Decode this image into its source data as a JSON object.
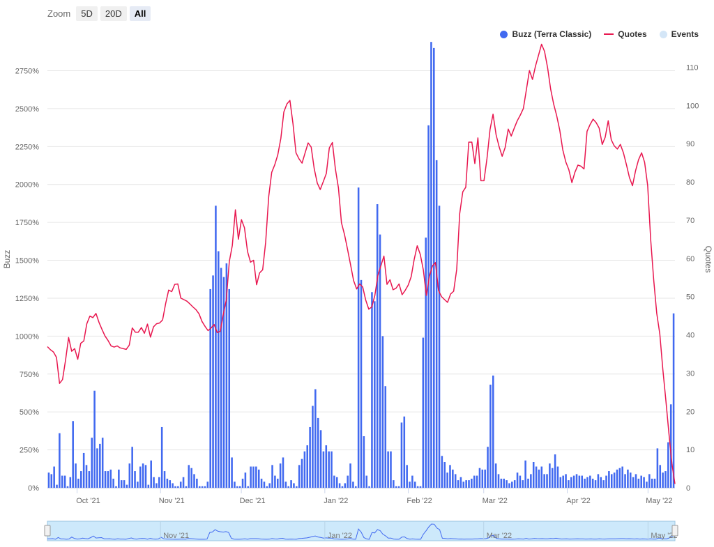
{
  "zoom": {
    "label": "Zoom",
    "buttons": [
      "5D",
      "20D",
      "All"
    ],
    "selected": "All"
  },
  "legend": {
    "placement": "top-right",
    "items": [
      {
        "name": "Buzz (Terra Classic)",
        "symbol": "dot",
        "color": "#4169f0"
      },
      {
        "name": "Quotes",
        "symbol": "line",
        "color": "#e8174f"
      },
      {
        "name": "Events",
        "symbol": "dot",
        "color": "#d4e6f7"
      }
    ]
  },
  "chart_data": {
    "type": "bar+line",
    "title": "",
    "xlabel": "",
    "ylabel_left": "Buzz",
    "ylabel_right": "Quotes",
    "x_ticks": [
      "Oct '21",
      "Nov '21",
      "Dec '21",
      "Jan '22",
      "Feb '22",
      "Mar '22",
      "Apr '22",
      "May '22"
    ],
    "y_left_ticks": [
      "0%",
      "250%",
      "500%",
      "750%",
      "1000%",
      "1250%",
      "1500%",
      "1750%",
      "2000%",
      "2250%",
      "2500%",
      "2750%"
    ],
    "y_left_range": [
      0,
      2950
    ],
    "y_right_ticks": [
      "0",
      "10",
      "20",
      "30",
      "40",
      "50",
      "60",
      "70",
      "80",
      "90",
      "100",
      "110"
    ],
    "y_right_range": [
      0,
      117
    ],
    "grid": "horizontal",
    "x_start_date": "2021-09-20",
    "x_end_date": "2022-05-11",
    "series": [
      {
        "name": "Buzz (Terra Classic)",
        "type": "bar",
        "axis": "left",
        "color": "#4169f0",
        "values": [
          100,
          90,
          140,
          20,
          360,
          80,
          80,
          10,
          70,
          440,
          160,
          60,
          110,
          230,
          150,
          110,
          330,
          640,
          260,
          290,
          330,
          110,
          110,
          120,
          60,
          10,
          120,
          50,
          50,
          20,
          160,
          270,
          110,
          40,
          140,
          160,
          150,
          20,
          180,
          70,
          30,
          70,
          400,
          110,
          60,
          50,
          30,
          10,
          10,
          40,
          70,
          10,
          150,
          130,
          90,
          60,
          10,
          10,
          10,
          40,
          1310,
          1400,
          1860,
          1560,
          1450,
          1390,
          1480,
          1310,
          200,
          40,
          10,
          10,
          60,
          100,
          10,
          140,
          140,
          140,
          120,
          60,
          40,
          10,
          30,
          150,
          80,
          60,
          160,
          200,
          40,
          10,
          50,
          30,
          10,
          150,
          190,
          240,
          280,
          400,
          540,
          650,
          460,
          380,
          240,
          280,
          240,
          240,
          80,
          70,
          30,
          10,
          30,
          80,
          160,
          40,
          10,
          1980,
          1370,
          340,
          80,
          10,
          1290,
          1230,
          1870,
          1670,
          1000,
          670,
          240,
          240,
          50,
          10,
          10,
          430,
          470,
          150,
          40,
          80,
          40,
          10,
          10,
          990,
          1650,
          2390,
          2940,
          2900,
          2160,
          1860,
          210,
          170,
          100,
          150,
          120,
          90,
          50,
          70,
          40,
          50,
          50,
          60,
          80,
          80,
          130,
          120,
          120,
          270,
          680,
          740,
          160,
          90,
          60,
          60,
          50,
          30,
          40,
          50,
          100,
          80,
          50,
          180,
          60,
          90,
          170,
          140,
          120,
          140,
          90,
          90,
          160,
          130,
          220,
          140,
          70,
          80,
          90,
          50,
          70,
          80,
          90,
          80,
          80,
          60,
          70,
          80,
          60,
          50,
          90,
          70,
          50,
          80,
          110,
          90,
          100,
          120,
          130,
          140,
          90,
          120,
          100,
          70,
          90,
          60,
          80,
          70,
          40,
          90,
          60,
          60,
          260,
          150,
          100,
          110,
          300,
          550,
          1150
        ],
        "bar_dates": [
          "2021-09-20",
          "2022-05-11"
        ]
      },
      {
        "name": "Quotes",
        "type": "line",
        "axis": "right",
        "color": "#e8174f",
        "values": [
          36.9,
          36.1,
          35.5,
          34.1,
          27.3,
          28.3,
          33.5,
          39.3,
          35.7,
          36.4,
          33.6,
          37.8,
          38.4,
          42.9,
          44.9,
          44.5,
          45.6,
          43.3,
          41.4,
          39.7,
          38.5,
          37.1,
          36.8,
          37.1,
          36.6,
          36.4,
          36.2,
          37.3,
          41.8,
          40.7,
          40.7,
          41.9,
          40.4,
          42.8,
          39.4,
          42.1,
          42.9,
          43.1,
          43.9,
          48.2,
          51.7,
          51.3,
          53.2,
          53.3,
          49.6,
          49.2,
          48.8,
          48.1,
          47.3,
          46.6,
          45.5,
          43.5,
          42.2,
          41.1,
          41.8,
          42.7,
          40.6,
          40.9,
          45.3,
          49.1,
          59.2,
          63.4,
          72.7,
          65.0,
          70.1,
          68.0,
          61.8,
          59.0,
          59.5,
          53.1,
          56.2,
          57.0,
          64.2,
          76.2,
          82.5,
          84.5,
          87.1,
          91.4,
          98.3,
          100.4,
          101.3,
          95.2,
          87.6,
          86.0,
          84.9,
          87.6,
          90.2,
          89.1,
          83.5,
          79.7,
          78.0,
          80.1,
          82.2,
          88.9,
          90.3,
          83.4,
          78.4,
          69.3,
          66.2,
          62.4,
          58.3,
          54.2,
          52.0,
          53.3,
          52.5,
          49.1,
          46.7,
          47.3,
          50.3,
          55.5,
          58.1,
          60.6,
          53.2,
          54.4,
          51.8,
          52.2,
          53.3,
          50.5,
          51.6,
          53.0,
          55.2,
          59.8,
          63.3,
          61.0,
          57.0,
          50.3,
          55.3,
          58.0,
          58.9,
          51.6,
          50.0,
          49.2,
          48.5,
          50.7,
          51.4,
          57.1,
          71.7,
          77.4,
          78.6,
          90.4,
          90.4,
          84.8,
          91.5,
          80.3,
          80.3,
          86.1,
          93.7,
          97.7,
          92.3,
          89.2,
          86.7,
          89.0,
          93.8,
          92.0,
          94.1,
          96.0,
          97.5,
          99.2,
          104.2,
          109.1,
          106.8,
          110.3,
          113.1,
          116.0,
          114.1,
          109.8,
          104.3,
          100.3,
          97.3,
          93.5,
          88.4,
          85.2,
          83.2,
          79.8,
          82.5,
          84.4,
          84.1,
          83.4,
          93.2,
          95.0,
          96.4,
          95.5,
          94.1,
          89.8,
          91.7,
          96.0,
          91.0,
          89.4,
          88.6,
          89.8,
          87.6,
          84.5,
          81.1,
          79.0,
          82.9,
          85.8,
          87.6,
          85.1,
          79.0,
          64.9,
          54.2,
          45.6,
          40.2,
          31.0,
          22.8,
          14.3,
          6.2,
          1.0
        ]
      }
    ]
  },
  "navigator": {
    "labels": [
      "Nov '21",
      "Jan '22",
      "Mar '22",
      "May '22"
    ]
  }
}
